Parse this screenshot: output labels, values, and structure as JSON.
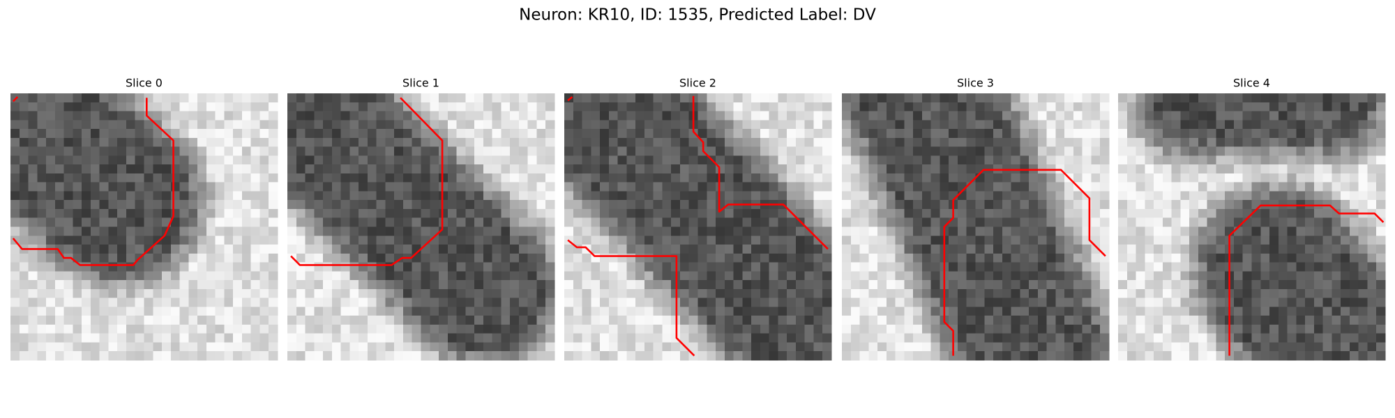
{
  "title": "Neuron: KR10, ID: 1535, Predicted Label: DV",
  "panels": [
    {
      "title": "Slice 0"
    },
    {
      "title": "Slice 1"
    },
    {
      "title": "Slice 2"
    },
    {
      "title": "Slice 3"
    },
    {
      "title": "Slice 4"
    }
  ]
}
